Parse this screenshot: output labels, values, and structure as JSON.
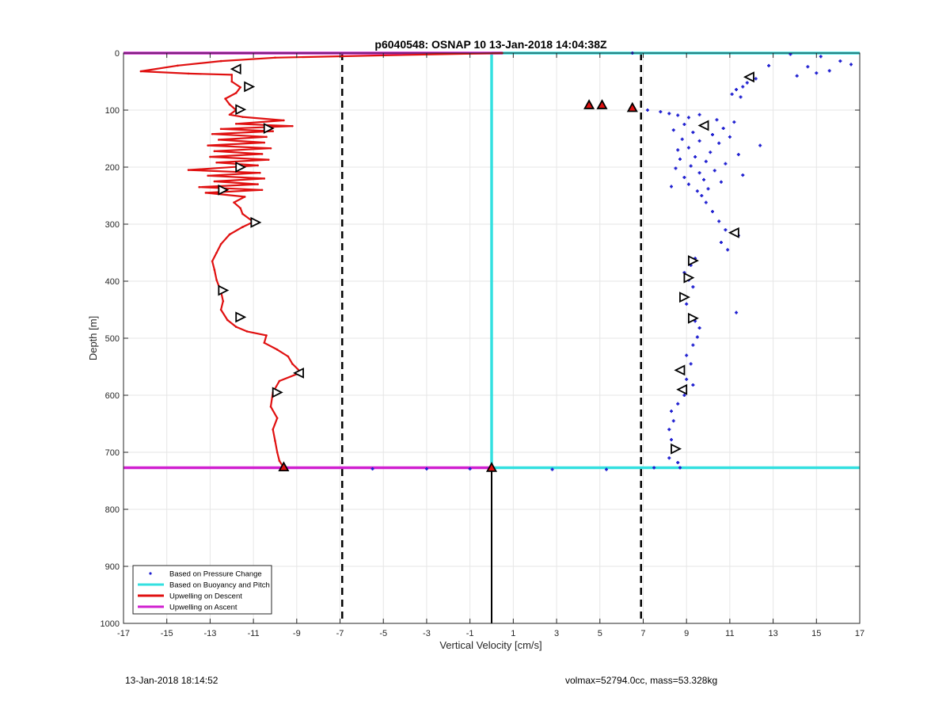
{
  "footer": {
    "timestamp": "13-Jan-2018 18:14:52",
    "volmax_mass": "volmax=52794.0cc, mass=53.328kg"
  },
  "colors": {
    "pressure_change": "#1f1fd0",
    "buoyancy_pitch": "#33e0e0",
    "upwelling_descent": "#e01010",
    "upwelling_ascent": "#d020d0",
    "grid": "#e6e6e6",
    "dashed_lines": "#000000"
  },
  "chart_data": {
    "type": "line",
    "title": "p6040548: OSNAP 10 13-Jan-2018 14:04:38Z",
    "xlabel": "Vertical Velocity [cm/s]",
    "ylabel": "Depth [m]",
    "xlim": [
      -17,
      17
    ],
    "ylim": [
      0,
      1000
    ],
    "y_reversed": true,
    "grid": true,
    "legend_position": "bottom-left",
    "xticks": [
      -17,
      -15,
      -13,
      -11,
      -9,
      -7,
      -5,
      -3,
      -1,
      1,
      3,
      5,
      7,
      9,
      11,
      13,
      15,
      17
    ],
    "yticks": [
      0,
      100,
      200,
      300,
      400,
      500,
      600,
      700,
      800,
      900,
      1000
    ],
    "legend": [
      "Based on Pressure Change",
      "Based on Buoyancy and Pitch",
      "Upwelling on Descent",
      "Upwelling on Ascent"
    ],
    "vertical_dashed_lines_x": [
      -6.9,
      6.9
    ],
    "series": [
      {
        "name": "Upwelling on Descent",
        "kind": "line",
        "points": [
          [
            0.5,
            0
          ],
          [
            -5,
            4
          ],
          [
            -10,
            8
          ],
          [
            -12.5,
            14
          ],
          [
            -14.5,
            22
          ],
          [
            -16.2,
            32
          ],
          [
            -14,
            36
          ],
          [
            -12,
            38
          ],
          [
            -12,
            50
          ],
          [
            -11.6,
            60
          ],
          [
            -11.8,
            70
          ],
          [
            -12.3,
            80
          ],
          [
            -12.1,
            90
          ],
          [
            -11.8,
            100
          ],
          [
            -12.1,
            108
          ],
          [
            -11.5,
            112
          ],
          [
            -9.6,
            118
          ],
          [
            -11.8,
            124
          ],
          [
            -9.2,
            128
          ],
          [
            -12.5,
            133
          ],
          [
            -10.1,
            137
          ],
          [
            -12.9,
            142
          ],
          [
            -10.4,
            147
          ],
          [
            -12.6,
            152
          ],
          [
            -10.5,
            157
          ],
          [
            -13.1,
            162
          ],
          [
            -10.2,
            167
          ],
          [
            -12.8,
            172
          ],
          [
            -10.6,
            177
          ],
          [
            -13,
            182
          ],
          [
            -10.3,
            187
          ],
          [
            -12.7,
            192
          ],
          [
            -10.8,
            197
          ],
          [
            -14,
            205
          ],
          [
            -10.7,
            210
          ],
          [
            -13.1,
            215
          ],
          [
            -10.5,
            220
          ],
          [
            -12.8,
            225
          ],
          [
            -10.8,
            230
          ],
          [
            -13.5,
            235
          ],
          [
            -10.6,
            240
          ],
          [
            -13.2,
            245
          ],
          [
            -11.4,
            252
          ],
          [
            -11.9,
            262
          ],
          [
            -11.6,
            272
          ],
          [
            -11.5,
            282
          ],
          [
            -11,
            296
          ],
          [
            -11.5,
            305
          ],
          [
            -12.1,
            318
          ],
          [
            -12.5,
            335
          ],
          [
            -12.7,
            350
          ],
          [
            -12.9,
            365
          ],
          [
            -12.8,
            380
          ],
          [
            -12.7,
            398
          ],
          [
            -12.5,
            418
          ],
          [
            -12.4,
            435
          ],
          [
            -12.5,
            450
          ],
          [
            -12.2,
            468
          ],
          [
            -11.8,
            480
          ],
          [
            -11.3,
            488
          ],
          [
            -10.4,
            495
          ],
          [
            -10.5,
            508
          ],
          [
            -9.9,
            520
          ],
          [
            -9.4,
            532
          ],
          [
            -9.2,
            545
          ],
          [
            -8.8,
            560
          ],
          [
            -9.8,
            575
          ],
          [
            -10.1,
            595
          ],
          [
            -10.2,
            620
          ],
          [
            -9.9,
            640
          ],
          [
            -10.1,
            660
          ],
          [
            -10,
            680
          ],
          [
            -9.9,
            700
          ],
          [
            -9.8,
            715
          ],
          [
            -9.6,
            727
          ]
        ]
      },
      {
        "name": "Upwelling on Ascent",
        "kind": "line",
        "points": [
          [
            -17,
            0
          ],
          [
            0.5,
            0
          ],
          [
            -17,
            727
          ],
          [
            0,
            727
          ]
        ]
      },
      {
        "name": "Based on Buoyancy and Pitch",
        "kind": "line",
        "points": [
          [
            0,
            0
          ],
          [
            17,
            0
          ],
          [
            0,
            727
          ],
          [
            17,
            727
          ],
          [
            0,
            0
          ],
          [
            0,
            727
          ]
        ]
      },
      {
        "name": "Based on Pressure Change",
        "kind": "scatter",
        "points": [
          [
            13.8,
            2
          ],
          [
            15.2,
            6
          ],
          [
            16.1,
            14
          ],
          [
            16.6,
            20
          ],
          [
            14.6,
            24
          ],
          [
            15.6,
            31
          ],
          [
            15,
            35
          ],
          [
            14.1,
            40
          ],
          [
            12.8,
            22
          ],
          [
            12.2,
            45
          ],
          [
            11.8,
            52
          ],
          [
            11.6,
            59
          ],
          [
            11.3,
            64
          ],
          [
            11.1,
            72
          ],
          [
            11.5,
            77
          ],
          [
            4.5,
            91
          ],
          [
            5.1,
            91
          ],
          [
            6.5,
            97
          ],
          [
            7.2,
            100
          ],
          [
            7.8,
            103
          ],
          [
            8.2,
            106
          ],
          [
            8.6,
            109
          ],
          [
            9.1,
            113
          ],
          [
            9.6,
            108
          ],
          [
            10.4,
            117
          ],
          [
            11.2,
            121
          ],
          [
            8.9,
            125
          ],
          [
            9.9,
            128
          ],
          [
            10.7,
            132
          ],
          [
            8.4,
            135
          ],
          [
            9.3,
            139
          ],
          [
            10.2,
            143
          ],
          [
            11,
            147
          ],
          [
            8.8,
            151
          ],
          [
            9.6,
            154
          ],
          [
            10.5,
            158
          ],
          [
            12.4,
            162
          ],
          [
            9.1,
            166
          ],
          [
            8.6,
            170
          ],
          [
            10.1,
            174
          ],
          [
            11.4,
            178
          ],
          [
            9.4,
            182
          ],
          [
            8.7,
            186
          ],
          [
            9.9,
            190
          ],
          [
            10.8,
            194
          ],
          [
            9.2,
            198
          ],
          [
            8.5,
            202
          ],
          [
            10.3,
            206
          ],
          [
            9.6,
            210
          ],
          [
            11.6,
            214
          ],
          [
            8.9,
            218
          ],
          [
            9.8,
            222
          ],
          [
            10.6,
            226
          ],
          [
            9.1,
            230
          ],
          [
            8.3,
            234
          ],
          [
            10,
            238
          ],
          [
            9.5,
            242
          ],
          [
            9.7,
            250
          ],
          [
            9.9,
            262
          ],
          [
            10.2,
            278
          ],
          [
            10.5,
            295
          ],
          [
            10.8,
            310
          ],
          [
            11.4,
            320
          ],
          [
            10.6,
            332
          ],
          [
            10.9,
            345
          ],
          [
            9.4,
            360
          ],
          [
            9.2,
            372
          ],
          [
            8.9,
            385
          ],
          [
            9.1,
            398
          ],
          [
            9.3,
            410
          ],
          [
            8.8,
            425
          ],
          [
            9,
            440
          ],
          [
            11.3,
            455
          ],
          [
            9.4,
            470
          ],
          [
            9.6,
            482
          ],
          [
            9.5,
            498
          ],
          [
            9.3,
            512
          ],
          [
            9,
            530
          ],
          [
            9.2,
            545
          ],
          [
            8.7,
            558
          ],
          [
            9,
            572
          ],
          [
            9.3,
            582
          ],
          [
            8.9,
            600
          ],
          [
            8.6,
            615
          ],
          [
            8.3,
            628
          ],
          [
            8.4,
            645
          ],
          [
            8.2,
            660
          ],
          [
            8.3,
            678
          ],
          [
            8.5,
            695
          ],
          [
            8.2,
            710
          ],
          [
            8.6,
            718
          ],
          [
            8.7,
            727
          ],
          [
            7.5,
            727
          ],
          [
            5.3,
            730
          ],
          [
            2.8,
            730
          ],
          [
            -3,
            729
          ],
          [
            -5.5,
            729
          ],
          [
            -1,
            729
          ],
          [
            6.5,
            0
          ]
        ]
      }
    ],
    "triangle_markers": [
      {
        "x": -11.8,
        "y": 28,
        "dir": "left"
      },
      {
        "x": -11.2,
        "y": 59,
        "dir": "right"
      },
      {
        "x": -11.6,
        "y": 99,
        "dir": "right"
      },
      {
        "x": -10.3,
        "y": 132,
        "dir": "right"
      },
      {
        "x": -11.6,
        "y": 200,
        "dir": "right"
      },
      {
        "x": -12.4,
        "y": 240,
        "dir": "right"
      },
      {
        "x": -10.9,
        "y": 297,
        "dir": "right"
      },
      {
        "x": -12.4,
        "y": 416,
        "dir": "right"
      },
      {
        "x": -11.6,
        "y": 463,
        "dir": "right"
      },
      {
        "x": -8.9,
        "y": 561,
        "dir": "left"
      },
      {
        "x": -9.9,
        "y": 595,
        "dir": "right"
      },
      {
        "x": 11.9,
        "y": 42,
        "dir": "left"
      },
      {
        "x": 9.8,
        "y": 127,
        "dir": "left"
      },
      {
        "x": 11.2,
        "y": 315,
        "dir": "left"
      },
      {
        "x": 9.3,
        "y": 364,
        "dir": "right"
      },
      {
        "x": 9.1,
        "y": 394,
        "dir": "right"
      },
      {
        "x": 8.9,
        "y": 428,
        "dir": "right"
      },
      {
        "x": 9.3,
        "y": 465,
        "dir": "right"
      },
      {
        "x": 8.7,
        "y": 556,
        "dir": "left"
      },
      {
        "x": 8.8,
        "y": 590,
        "dir": "left"
      },
      {
        "x": 8.5,
        "y": 694,
        "dir": "right"
      },
      {
        "x": 4.5,
        "y": 91,
        "dir": "up"
      },
      {
        "x": 5.1,
        "y": 91,
        "dir": "up"
      },
      {
        "x": 6.5,
        "y": 96,
        "dir": "up"
      },
      {
        "x": -9.6,
        "y": 726,
        "dir": "up"
      },
      {
        "x": 0,
        "y": 727,
        "dir": "up"
      }
    ],
    "baseline_segment": {
      "x": 0,
      "y_from": 727,
      "y_to": 1000
    }
  }
}
